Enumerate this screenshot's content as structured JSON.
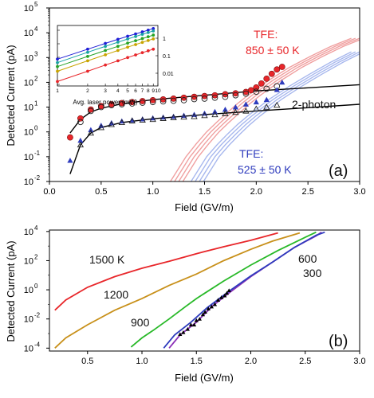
{
  "chart_data": [
    {
      "panel": "(a)",
      "type": "scatter",
      "xlabel": "Field (GV/m)",
      "ylabel": "Detected Current (pA)",
      "xlim": [
        0.0,
        3.0
      ],
      "ylim_log10": [
        -2,
        5
      ],
      "yscale": "log",
      "x_ticks": [
        "0.0",
        "0.5",
        "1.0",
        "1.5",
        "2.0",
        "2.5",
        "3.0"
      ],
      "y_ticks": [
        "10-2",
        "10-1",
        "100",
        "101",
        "102",
        "103",
        "104",
        "105"
      ],
      "annotations": [
        {
          "text": "TFE:",
          "color": "#e8262a"
        },
        {
          "text": "850 ± 50 K",
          "color": "#e8262a"
        },
        {
          "text": "TFE:",
          "color": "#2e3bbd"
        },
        {
          "text": "525 ± 50 K",
          "color": "#2e3bbd"
        },
        {
          "text": "2-photon",
          "color": "#111111"
        }
      ],
      "series": [
        {
          "kind": "filled-circles",
          "color": "#e8262a",
          "x": [
            0.2,
            0.3,
            0.4,
            0.5,
            0.6,
            0.7,
            0.8,
            0.9,
            1.0,
            1.1,
            1.2,
            1.3,
            1.4,
            1.5,
            1.6,
            1.7,
            1.8,
            1.9,
            1.95,
            2.0,
            2.05,
            2.1,
            2.15,
            2.2,
            2.25
          ],
          "y": [
            0.6,
            3.5,
            8,
            11,
            13,
            14.5,
            16,
            17.5,
            19,
            20.5,
            22,
            24,
            26,
            28,
            30,
            33,
            36,
            41,
            48,
            62,
            90,
            140,
            220,
            330,
            420
          ]
        },
        {
          "kind": "open-circles",
          "color": "#222222",
          "x": [
            0.3,
            0.4,
            0.5,
            0.6,
            0.7,
            0.8,
            0.9,
            1.0,
            1.1,
            1.2,
            1.3,
            1.4,
            1.5,
            1.6,
            1.7,
            1.8,
            1.9,
            2.0,
            2.1,
            2.2
          ],
          "y": [
            2.5,
            7,
            10,
            12,
            13,
            14,
            15,
            16,
            17,
            18,
            19,
            21,
            22,
            24,
            26,
            30,
            35,
            42,
            55,
            70
          ]
        },
        {
          "kind": "filled-triangles",
          "color": "#2e3bbd",
          "x": [
            0.2,
            0.3,
            0.4,
            0.5,
            0.6,
            0.7,
            0.8,
            0.9,
            1.0,
            1.1,
            1.2,
            1.3,
            1.4,
            1.5,
            1.6,
            1.7,
            1.8,
            1.9,
            2.0,
            2.1,
            2.2,
            2.25
          ],
          "y": [
            0.07,
            0.45,
            1.2,
            1.8,
            2.3,
            2.7,
            3.0,
            3.3,
            3.6,
            3.9,
            4.2,
            4.6,
            5.0,
            5.6,
            6.5,
            8,
            10,
            13,
            16,
            20,
            50,
            100
          ]
        },
        {
          "kind": "open-triangles",
          "color": "#222222",
          "x": [
            0.3,
            0.4,
            0.5,
            0.6,
            0.7,
            0.8,
            0.9,
            1.0,
            1.1,
            1.2,
            1.3,
            1.4,
            1.5,
            1.6,
            1.7,
            1.8,
            1.9,
            2.0,
            2.1,
            2.2
          ],
          "y": [
            0.3,
            0.9,
            1.5,
            2.0,
            2.4,
            2.8,
            3.0,
            3.2,
            3.5,
            3.8,
            4.0,
            4.2,
            4.6,
            5.0,
            5.5,
            6.2,
            7,
            8.5,
            10,
            12
          ]
        },
        {
          "kind": "line",
          "color": "#000000",
          "x": [
            0.2,
            0.3,
            0.4,
            0.5,
            0.7,
            1.0,
            1.5,
            2.0,
            2.5,
            3.0
          ],
          "y": [
            0.9,
            3.2,
            6.4,
            9,
            13.5,
            20,
            30,
            45,
            60,
            80
          ]
        },
        {
          "kind": "line",
          "color": "#000000",
          "x": [
            0.2,
            0.3,
            0.4,
            0.5,
            0.7,
            1.0,
            1.5,
            2.0,
            2.5,
            3.0
          ],
          "y": [
            0.02,
            0.3,
            0.9,
            1.5,
            2.4,
            3.4,
            5,
            7,
            9.5,
            13
          ]
        },
        {
          "kind": "band",
          "color": "#f0a0a0",
          "offsets": [
            -0.08,
            -0.04,
            0,
            0.04
          ],
          "x": [
            1.25,
            1.4,
            1.5,
            1.6,
            1.7,
            1.8,
            1.9,
            2.0,
            2.2,
            2.4,
            2.6,
            2.8,
            3.0
          ],
          "y": [
            0.01,
            0.1,
            0.33,
            1,
            2.5,
            6,
            14,
            30,
            120,
            400,
            1100,
            2800,
            6000
          ]
        },
        {
          "kind": "band",
          "color": "#a8b8ee",
          "offsets": [
            -0.08,
            -0.04,
            0,
            0.04
          ],
          "x": [
            1.45,
            1.6,
            1.7,
            1.8,
            1.9,
            2.0,
            2.2,
            2.4,
            2.6,
            2.8,
            3.0
          ],
          "y": [
            0.01,
            0.1,
            0.3,
            0.8,
            2,
            4.5,
            20,
            70,
            220,
            650,
            1700
          ]
        }
      ],
      "inset": {
        "xlabel": "Avg. laser power (mW)",
        "x_ticks": [
          "1",
          "2",
          "3",
          "4",
          "5",
          "6",
          "7",
          "8",
          "9",
          "10"
        ],
        "y_right_ticks": [
          "1",
          "0.1",
          "0.01"
        ],
        "y_left_ticks": [
          "10",
          "10",
          "10",
          "10",
          "10"
        ],
        "series": [
          {
            "color": "#1f1fd6",
            "x": [
              1,
              2,
              3,
              4,
              5,
              6,
              7,
              8,
              9
            ],
            "y": [
              3.5,
              13,
              28,
              48,
              72,
              98,
              128,
              162,
              200
            ]
          },
          {
            "color": "#19a3a3",
            "x": [
              1,
              2,
              3,
              4,
              5,
              6,
              7,
              8,
              9
            ],
            "y": [
              2.2,
              8.6,
              19,
              33,
              50,
              70,
              93,
              118,
              146
            ]
          },
          {
            "color": "#27a327",
            "x": [
              1,
              2,
              3,
              4,
              5,
              6,
              7,
              8,
              9
            ],
            "y": [
              1.3,
              5,
              11,
              19,
              29,
              40,
              53,
              68,
              84
            ]
          },
          {
            "color": "#c8a400",
            "x": [
              1,
              2,
              3,
              4,
              5,
              6,
              7,
              8,
              9
            ],
            "y": [
              0.7,
              2.8,
              6.2,
              11,
              17,
              24,
              32,
              41,
              51
            ]
          },
          {
            "color": "#e8262a",
            "x": [
              1,
              2,
              3,
              4,
              5,
              6,
              7,
              8,
              9
            ],
            "y": [
              0.18,
              0.7,
              1.6,
              2.8,
              4.3,
              6.1,
              8.2,
              10.5,
              13
            ]
          }
        ]
      }
    },
    {
      "panel": "(b)",
      "type": "line",
      "xlabel": "Field (GV/m)",
      "ylabel": "Detected Current (pA)",
      "xlim": [
        0.0,
        3.0
      ],
      "ylim_log10": [
        -4,
        4
      ],
      "yscale": "log",
      "x_ticks": [
        "0.5",
        "1.0",
        "1.5",
        "2.0",
        "2.5",
        "3.0"
      ],
      "y_ticks": [
        "10-4",
        "10-2",
        "100",
        "102",
        "104"
      ],
      "series": [
        {
          "name": "1500 K",
          "color": "#e8262a",
          "x": [
            0.2,
            0.3,
            0.5,
            0.75,
            1.0,
            1.25,
            1.5,
            1.75,
            2.0,
            2.25
          ],
          "y": [
            0.04,
            0.2,
            1.5,
            8,
            30,
            90,
            300,
            900,
            2500,
            8000
          ]
        },
        {
          "name": "1200",
          "color": "#c8901a",
          "x": [
            0.2,
            0.3,
            0.5,
            0.75,
            1.0,
            1.25,
            1.5,
            1.75,
            2.0,
            2.2,
            2.45
          ],
          "y": [
            0.0001,
            0.0005,
            0.004,
            0.04,
            0.25,
            2,
            12,
            100,
            600,
            2200,
            8000
          ]
        },
        {
          "name": "900",
          "color": "#28b928",
          "x": [
            0.9,
            1.0,
            1.1,
            1.25,
            1.4,
            1.5,
            1.75,
            2.0,
            2.25,
            2.5,
            2.6
          ],
          "y": [
            0.00012,
            0.0005,
            0.0016,
            0.01,
            0.07,
            0.25,
            4,
            50,
            500,
            4000,
            9000
          ]
        },
        {
          "name": "600",
          "color": "#8b2fb7",
          "x": [
            1.25,
            1.35,
            1.5,
            1.65,
            1.8,
            2.0,
            2.2,
            2.4,
            2.6,
            2.65
          ],
          "y": [
            0.0001,
            0.0008,
            0.006,
            0.08,
            0.6,
            8,
            80,
            800,
            5000,
            9000
          ]
        },
        {
          "name": "300",
          "color": "#2e3bbd",
          "x": [
            1.2,
            1.3,
            1.45,
            1.6,
            1.8,
            2.0,
            2.2,
            2.4,
            2.6,
            2.68
          ],
          "y": [
            0.0001,
            0.0008,
            0.006,
            0.06,
            0.8,
            9,
            80,
            800,
            5500,
            9000
          ]
        }
      ],
      "points": {
        "kind": "black-scatter",
        "color": "#000000",
        "x": [
          1.35,
          1.38,
          1.42,
          1.45,
          1.48,
          1.5,
          1.53,
          1.56,
          1.58,
          1.61,
          1.64,
          1.67,
          1.7,
          1.73,
          1.76,
          1.78,
          1.8
        ],
        "y": [
          0.0009,
          0.0012,
          0.002,
          0.004,
          0.004,
          0.008,
          0.01,
          0.02,
          0.03,
          0.05,
          0.07,
          0.1,
          0.2,
          0.3,
          0.4,
          0.6,
          0.9
        ]
      },
      "label_600": "600",
      "label_300": "300"
    }
  ],
  "labels": {
    "panel_a": "(a)",
    "panel_b": "(b)"
  }
}
